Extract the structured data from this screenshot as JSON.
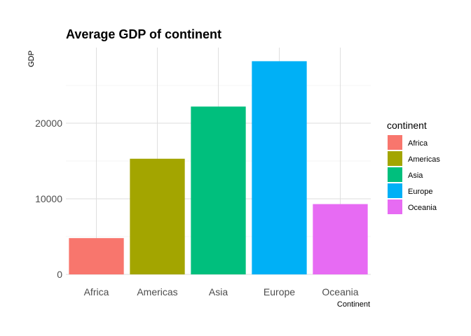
{
  "chart_data": {
    "type": "bar",
    "title": "Average GDP of continent",
    "xlabel": "Continent",
    "ylabel": "GDP",
    "categories": [
      "Africa",
      "Americas",
      "Asia",
      "Europe",
      "Oceania"
    ],
    "values": [
      4800,
      15300,
      22200,
      28200,
      9300
    ],
    "colors": [
      "#F8766D",
      "#A3A500",
      "#00BF7D",
      "#00B0F6",
      "#E76BF3"
    ],
    "ylim": [
      0,
      30000
    ],
    "yticks": [
      0,
      10000,
      20000
    ],
    "ytick_labels": [
      "0",
      "10000",
      "20000"
    ],
    "grid": true,
    "legend": {
      "title": "continent",
      "placement": "right",
      "entries": [
        "Africa",
        "Americas",
        "Asia",
        "Europe",
        "Oceania"
      ]
    }
  }
}
